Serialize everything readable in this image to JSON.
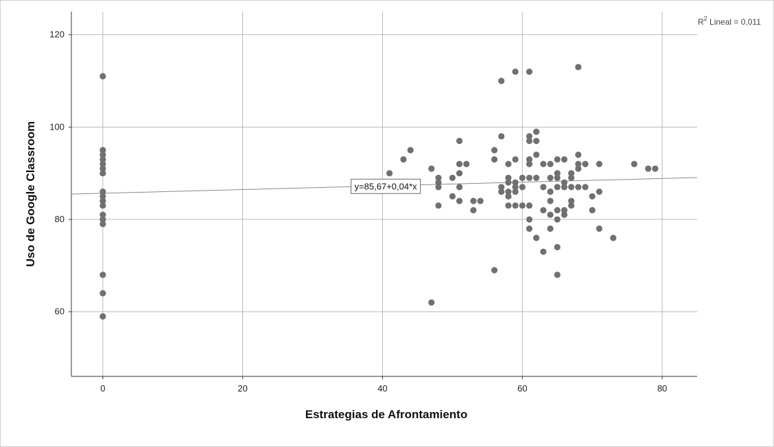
{
  "chart_data": {
    "type": "scatter",
    "title": "",
    "xlabel": "Estrategias de Afrontamiento",
    "ylabel": "Uso de Google Classroom",
    "xlim": [
      -4.5,
      85
    ],
    "ylim": [
      46,
      125
    ],
    "x_ticks": [
      0,
      20,
      40,
      60,
      80
    ],
    "y_ticks": [
      60,
      80,
      100,
      120
    ],
    "x_tick_labels": [
      "0",
      "20",
      "40",
      "60",
      "80"
    ],
    "y_tick_labels": [
      "60",
      "80",
      "100",
      "120"
    ],
    "grid": true,
    "point_color": "#707070",
    "fit_line": {
      "intercept": 85.67,
      "slope": 0.04,
      "label": "y=85,67+0,04*x"
    },
    "r2_label": {
      "prefix": "R",
      "sup": "2",
      "text": " Lineal = 0,011"
    },
    "points": [
      [
        0,
        111
      ],
      [
        0,
        95
      ],
      [
        0,
        94
      ],
      [
        0,
        93
      ],
      [
        0,
        92
      ],
      [
        0,
        91
      ],
      [
        0,
        90
      ],
      [
        0,
        86
      ],
      [
        0,
        85
      ],
      [
        0,
        84
      ],
      [
        0,
        83
      ],
      [
        0,
        81
      ],
      [
        0,
        80
      ],
      [
        0,
        79
      ],
      [
        0,
        68
      ],
      [
        0,
        64
      ],
      [
        0,
        59
      ],
      [
        41,
        90
      ],
      [
        43,
        93
      ],
      [
        44,
        95
      ],
      [
        47,
        91
      ],
      [
        47,
        62
      ],
      [
        48,
        89
      ],
      [
        48,
        88
      ],
      [
        48,
        87
      ],
      [
        48,
        83
      ],
      [
        50,
        89
      ],
      [
        50,
        85
      ],
      [
        51,
        97
      ],
      [
        51,
        92
      ],
      [
        51,
        90
      ],
      [
        51,
        87
      ],
      [
        51,
        84
      ],
      [
        52,
        92
      ],
      [
        53,
        84
      ],
      [
        53,
        82
      ],
      [
        54,
        84
      ],
      [
        56,
        95
      ],
      [
        56,
        93
      ],
      [
        56,
        69
      ],
      [
        57,
        110
      ],
      [
        57,
        98
      ],
      [
        57,
        87
      ],
      [
        57,
        86
      ],
      [
        58,
        92
      ],
      [
        58,
        89
      ],
      [
        58,
        88
      ],
      [
        58,
        86
      ],
      [
        58,
        85
      ],
      [
        58,
        83
      ],
      [
        59,
        112
      ],
      [
        59,
        93
      ],
      [
        59,
        88
      ],
      [
        59,
        87
      ],
      [
        59,
        86
      ],
      [
        59,
        83
      ],
      [
        60,
        89
      ],
      [
        60,
        87
      ],
      [
        60,
        83
      ],
      [
        61,
        112
      ],
      [
        61,
        98
      ],
      [
        61,
        97
      ],
      [
        61,
        93
      ],
      [
        61,
        92
      ],
      [
        61,
        89
      ],
      [
        61,
        83
      ],
      [
        61,
        80
      ],
      [
        61,
        78
      ],
      [
        62,
        99
      ],
      [
        62,
        97
      ],
      [
        62,
        94
      ],
      [
        62,
        89
      ],
      [
        62,
        76
      ],
      [
        63,
        92
      ],
      [
        63,
        87
      ],
      [
        63,
        82
      ],
      [
        63,
        73
      ],
      [
        64,
        92
      ],
      [
        64,
        89
      ],
      [
        64,
        86
      ],
      [
        64,
        84
      ],
      [
        64,
        81
      ],
      [
        64,
        78
      ],
      [
        65,
        93
      ],
      [
        65,
        90
      ],
      [
        65,
        89
      ],
      [
        65,
        87
      ],
      [
        65,
        82
      ],
      [
        65,
        80
      ],
      [
        65,
        74
      ],
      [
        65,
        68
      ],
      [
        66,
        93
      ],
      [
        66,
        88
      ],
      [
        66,
        87
      ],
      [
        66,
        82
      ],
      [
        66,
        81
      ],
      [
        67,
        90
      ],
      [
        67,
        89
      ],
      [
        67,
        87
      ],
      [
        67,
        84
      ],
      [
        67,
        83
      ],
      [
        68,
        113
      ],
      [
        68,
        94
      ],
      [
        68,
        92
      ],
      [
        68,
        91
      ],
      [
        68,
        87
      ],
      [
        69,
        92
      ],
      [
        69,
        87
      ],
      [
        70,
        85
      ],
      [
        70,
        82
      ],
      [
        71,
        92
      ],
      [
        71,
        86
      ],
      [
        71,
        78
      ],
      [
        73,
        76
      ],
      [
        76,
        92
      ],
      [
        78,
        91
      ],
      [
        79,
        91
      ]
    ]
  }
}
